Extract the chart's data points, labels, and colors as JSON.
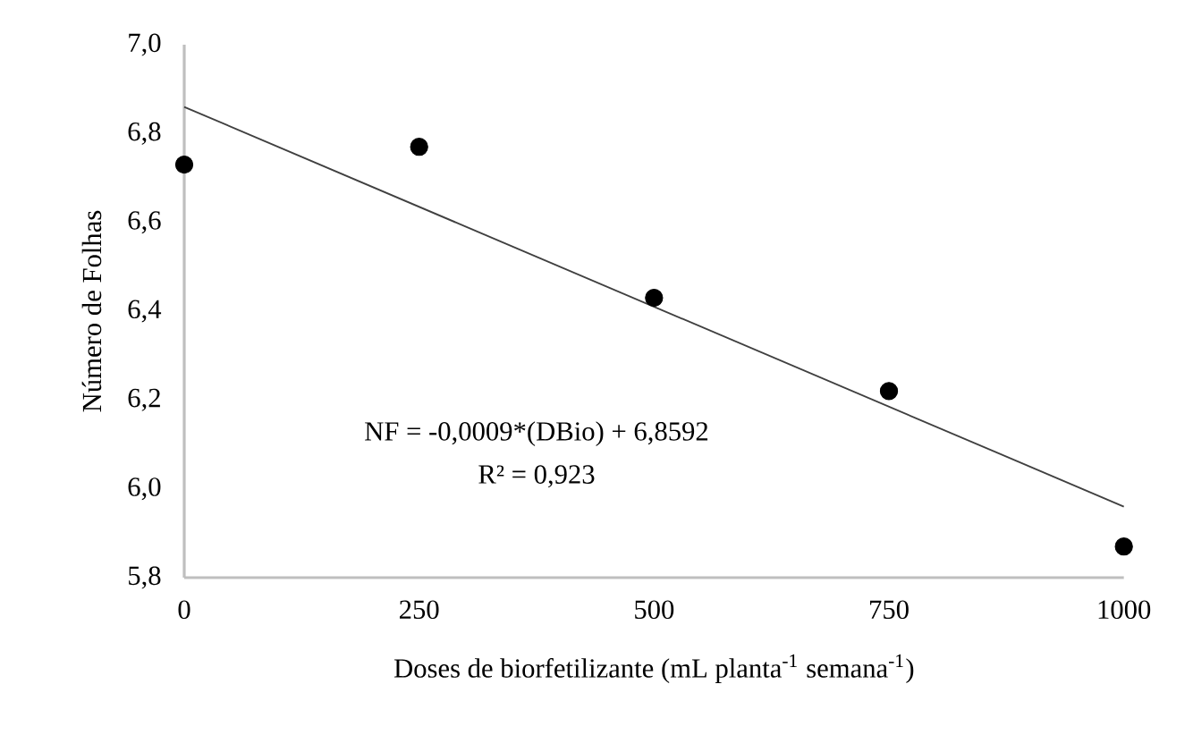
{
  "chart_data": {
    "type": "scatter",
    "xlabel": "Doses de biorfetilizante (mL planta$^{-1}$ semana$^{-1}$)",
    "ylabel": "Número de Folhas",
    "xlim": [
      0,
      1000
    ],
    "ylim": [
      5.8,
      7.0
    ],
    "xticks": [
      0,
      250,
      500,
      750,
      1000
    ],
    "yticks": [
      {
        "value": 5.8,
        "label": "5,8"
      },
      {
        "value": 6.0,
        "label": "6,0"
      },
      {
        "value": 6.2,
        "label": "6,2"
      },
      {
        "value": 6.4,
        "label": "6,4"
      },
      {
        "value": 6.6,
        "label": "6,6"
      },
      {
        "value": 6.8,
        "label": "6,8"
      },
      {
        "value": 7.0,
        "label": "7,0"
      }
    ],
    "grid": false,
    "series": [
      {
        "marker": "circle",
        "color": "#000000",
        "x": [
          0,
          250,
          500,
          750,
          1000
        ],
        "values": [
          6.73,
          6.77,
          6.43,
          6.22,
          5.87
        ]
      },
      {
        "type": "line",
        "color": "#404040",
        "marker": "none",
        "line_style": "solid",
        "x": [
          0,
          1000
        ],
        "values": [
          6.86,
          5.96
        ]
      }
    ],
    "annotations": [
      "NF = -0,0009*(DBio) + 6,8592",
      "R² = 0,923"
    ]
  }
}
